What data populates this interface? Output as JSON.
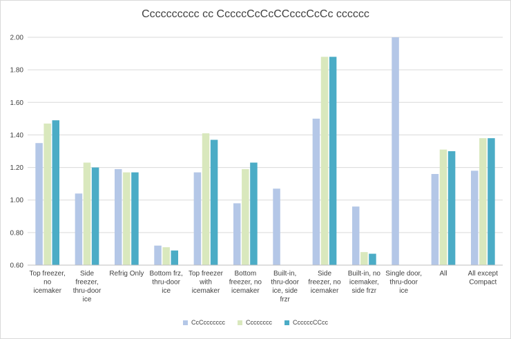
{
  "chart_data": {
    "type": "bar",
    "title": "Cccccccccc cc CccccCcCcCCcccCcCc cccccc",
    "ylim": [
      0.6,
      2.0
    ],
    "yticks": [
      "0.60",
      "0.80",
      "1.00",
      "1.20",
      "1.40",
      "1.60",
      "1.80",
      "2.00"
    ],
    "grid": true,
    "legend_position": "bottom",
    "categories": [
      [
        "Top freezer,",
        "no",
        "icemaker"
      ],
      [
        "Side",
        "freezer,",
        "thru-door",
        "ice"
      ],
      [
        "Refrig Only"
      ],
      [
        "Bottom frz,",
        "thru-door",
        "ice"
      ],
      [
        "Top freezer",
        "with",
        "icemaker"
      ],
      [
        "Bottom",
        "freezer, no",
        "icemaker"
      ],
      [
        "Built-in,",
        "thru-door",
        "ice, side",
        "frzr"
      ],
      [
        "Side",
        "freezer, no",
        "icemaker"
      ],
      [
        "Built-in, no",
        "icemaker,",
        "side frzr"
      ],
      [
        "Single door,",
        "thru-door",
        "ice"
      ],
      [
        "All"
      ],
      [
        "All except",
        "Compact"
      ]
    ],
    "series": [
      {
        "name": "CcCccccccc",
        "color": "#b4c7e7",
        "values": [
          1.35,
          1.04,
          1.19,
          0.72,
          1.17,
          0.98,
          1.07,
          1.5,
          0.96,
          2.0,
          1.16,
          1.18
        ]
      },
      {
        "name": "Cccccccc",
        "color": "#d9e8bd",
        "values": [
          1.47,
          1.23,
          1.17,
          0.71,
          1.41,
          1.19,
          null,
          1.88,
          0.68,
          null,
          1.31,
          1.38
        ]
      },
      {
        "name": "CcccccCCcc",
        "color": "#4bacc6",
        "values": [
          1.49,
          1.2,
          1.17,
          0.69,
          1.37,
          1.23,
          null,
          1.88,
          0.67,
          null,
          1.3,
          1.38
        ]
      }
    ]
  }
}
